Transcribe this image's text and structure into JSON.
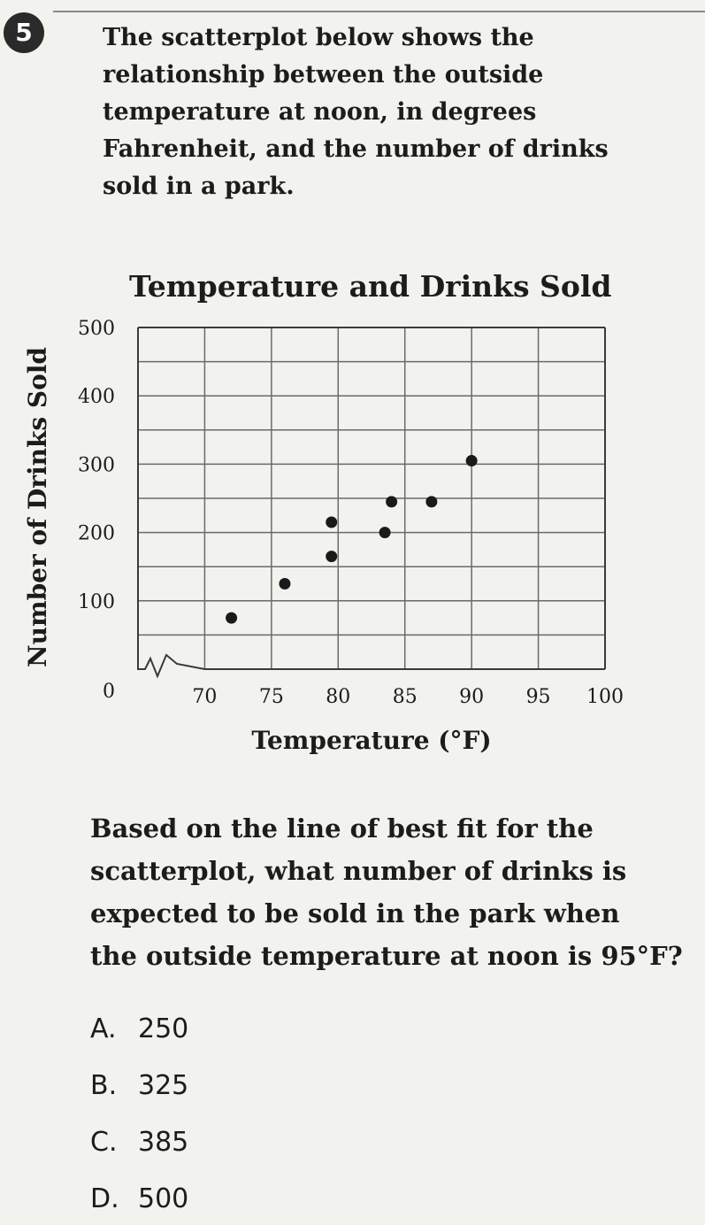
{
  "question": {
    "number": "5",
    "prompt_lines": [
      "The scatterplot below shows the",
      "relationship between the outside",
      "temperature at noon, in degrees",
      "Fahrenheit, and the number of drinks",
      "sold in a park."
    ],
    "ask_lines": [
      "Based on the line of best fit for the",
      "scatterplot, what number of drinks is",
      "expected to be sold in the park when",
      "the outside temperature at noon is 95°F?"
    ],
    "choices": [
      {
        "letter": "A.",
        "value": "250"
      },
      {
        "letter": "B.",
        "value": "325"
      },
      {
        "letter": "C.",
        "value": "385"
      },
      {
        "letter": "D.",
        "value": "500"
      }
    ]
  },
  "chart_data": {
    "type": "scatter",
    "title": "Temperature and Drinks Sold",
    "xlabel": "Temperature (°F)",
    "ylabel": "Number of Drinks Sold",
    "xlim": [
      65,
      100
    ],
    "ylim": [
      0,
      500
    ],
    "x_axis_break": true,
    "grid": true,
    "x_ticks": [
      70,
      75,
      80,
      85,
      90,
      95,
      100
    ],
    "y_ticks": [
      100,
      200,
      300,
      400,
      500
    ],
    "origin_label": "0",
    "points": [
      {
        "x": 72,
        "y": 75
      },
      {
        "x": 76,
        "y": 125
      },
      {
        "x": 79.5,
        "y": 165
      },
      {
        "x": 79.5,
        "y": 215
      },
      {
        "x": 83.5,
        "y": 200
      },
      {
        "x": 84,
        "y": 245
      },
      {
        "x": 87,
        "y": 245
      },
      {
        "x": 90,
        "y": 305
      }
    ]
  }
}
